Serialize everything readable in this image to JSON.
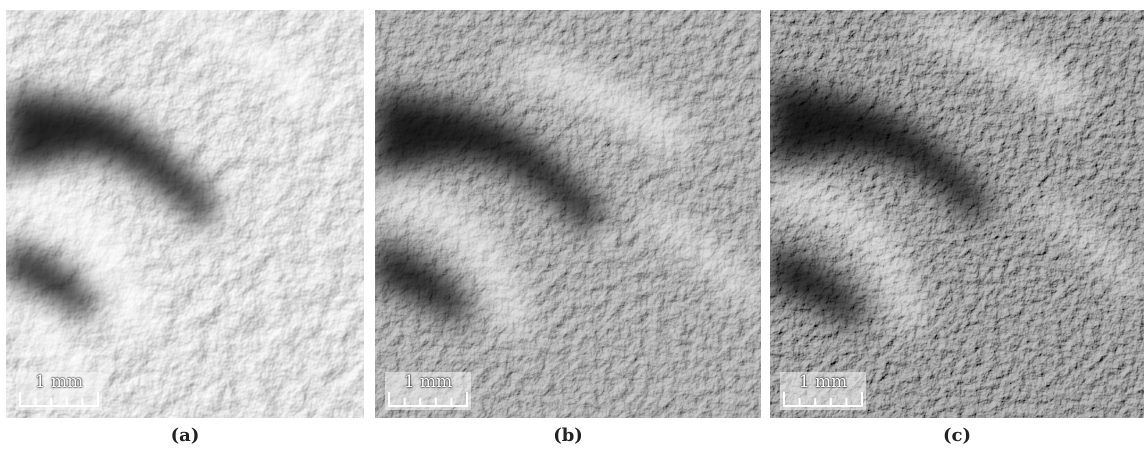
{
  "panels": [
    {
      "caption": "(a)",
      "scale_label": "1 mm"
    },
    {
      "caption": "(b)",
      "scale_label": "1 mm"
    },
    {
      "caption": "(c)",
      "scale_label": "1 mm"
    }
  ]
}
